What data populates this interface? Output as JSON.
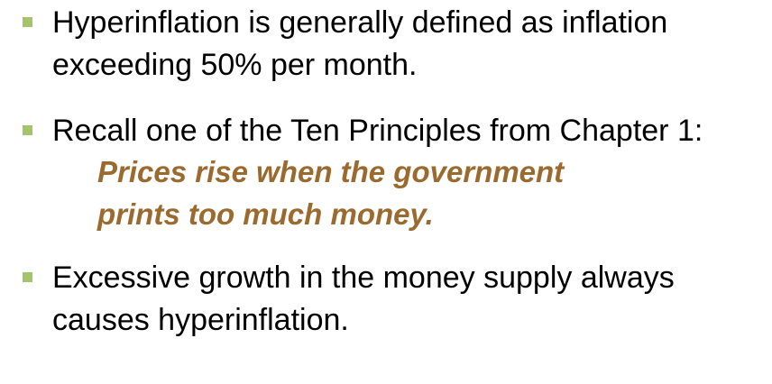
{
  "bullets": [
    {
      "lines": [
        "Hyperinflation is generally defined as inflation",
        "exceeding 50% per month."
      ]
    },
    {
      "lines": [
        "Recall one of the Ten Principles from Chapter 1:"
      ],
      "quote_lines": [
        "Prices rise when the government",
        "prints too much money."
      ]
    },
    {
      "lines": [
        "Excessive growth in the money supply always",
        "causes hyperinflation."
      ]
    }
  ],
  "colors": {
    "bullet_marker": "#a3c46b",
    "quote_text": "#9b6a2f"
  },
  "icons": {
    "bullet_marker": "square-bullet-icon"
  }
}
